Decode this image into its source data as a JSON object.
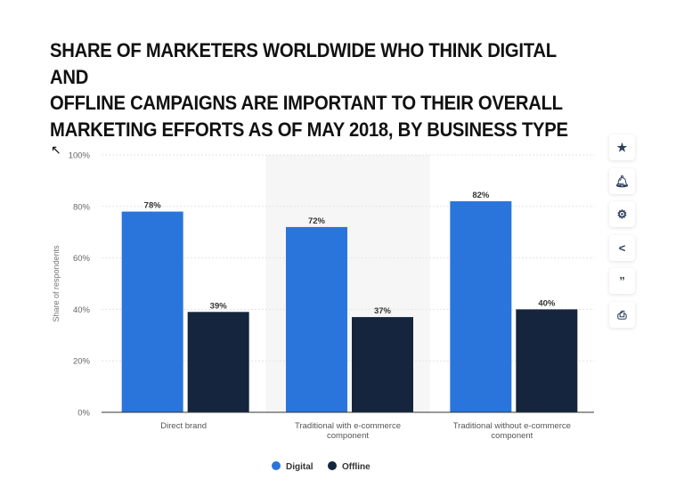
{
  "chart_data": {
    "type": "bar",
    "title": "SHARE OF MARKETERS WORLDWIDE WHO THINK DIGITAL AND\nOFFLINE CAMPAIGNS ARE IMPORTANT TO THEIR OVERALL\nMARKETING EFFORTS AS OF MAY 2018, BY BUSINESS TYPE",
    "ylabel": "Share of respondents",
    "xlabel": "",
    "ylim": [
      0,
      100
    ],
    "yticks": [
      "0%",
      "20%",
      "40%",
      "60%",
      "80%",
      "100%"
    ],
    "categories": [
      [
        "Direct brand"
      ],
      [
        "Traditional with e-commerce",
        "component"
      ],
      [
        "Traditional without e-commerce",
        "component"
      ]
    ],
    "series": [
      {
        "name": "Digital",
        "values": [
          78,
          72,
          82
        ],
        "labels": [
          "78%",
          "72%",
          "82%"
        ],
        "color": "#2a75dc"
      },
      {
        "name": "Offline",
        "values": [
          39,
          37,
          40
        ],
        "labels": [
          "39%",
          "37%",
          "40%"
        ],
        "color": "#14253d"
      }
    ],
    "grid": true,
    "legend": "bottom",
    "highlighted_category": 1
  },
  "toolbar": {
    "icons": [
      "star-icon",
      "bell-icon",
      "gear-icon",
      "share-icon",
      "quote-icon",
      "print-icon"
    ]
  }
}
